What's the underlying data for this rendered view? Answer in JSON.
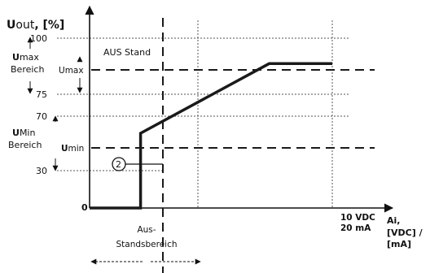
{
  "y_axis": {
    "label_main": "out",
    "label_prefix": "U",
    "label_unit": ", [%]",
    "ticks": [
      "100",
      "75",
      "70",
      "30",
      "0"
    ]
  },
  "x_axis": {
    "end_tick_line1": "10 VDC",
    "end_tick_line2": "20 mA",
    "label_line1": "Ai,",
    "label_line2": "[VDC] /",
    "label_line3": "[mA]"
  },
  "annotations": {
    "umax_bereich_prefix": "U",
    "umax_bereich_word": "max",
    "umax_bereich_line2": "Bereich",
    "umin_bereich_prefix": "U",
    "umin_bereich_word": "Min",
    "umin_bereich_line2": "Bereich",
    "umax_level_prefix": "U",
    "umax_level_sub": "max",
    "umin_level_prefix": "U",
    "umin_level_sub": "min",
    "aus_stand": "AUS Stand",
    "aus_standsbereich_line1": "Aus-",
    "aus_standsbereich_line2": "Standsbereich",
    "marker_number": "2"
  },
  "chart_data": {
    "type": "line",
    "xlim": [
      0,
      10
    ],
    "ylim": [
      0,
      100
    ],
    "off_threshold_x": 2.1,
    "umax_level": 85,
    "umin_level": 44,
    "x": [
      0,
      2.1,
      2.1,
      7.4,
      10
    ],
    "y": [
      0,
      0,
      44,
      85,
      85
    ]
  },
  "colors": {
    "line": "#1a1a1a",
    "grid": "#555555"
  }
}
